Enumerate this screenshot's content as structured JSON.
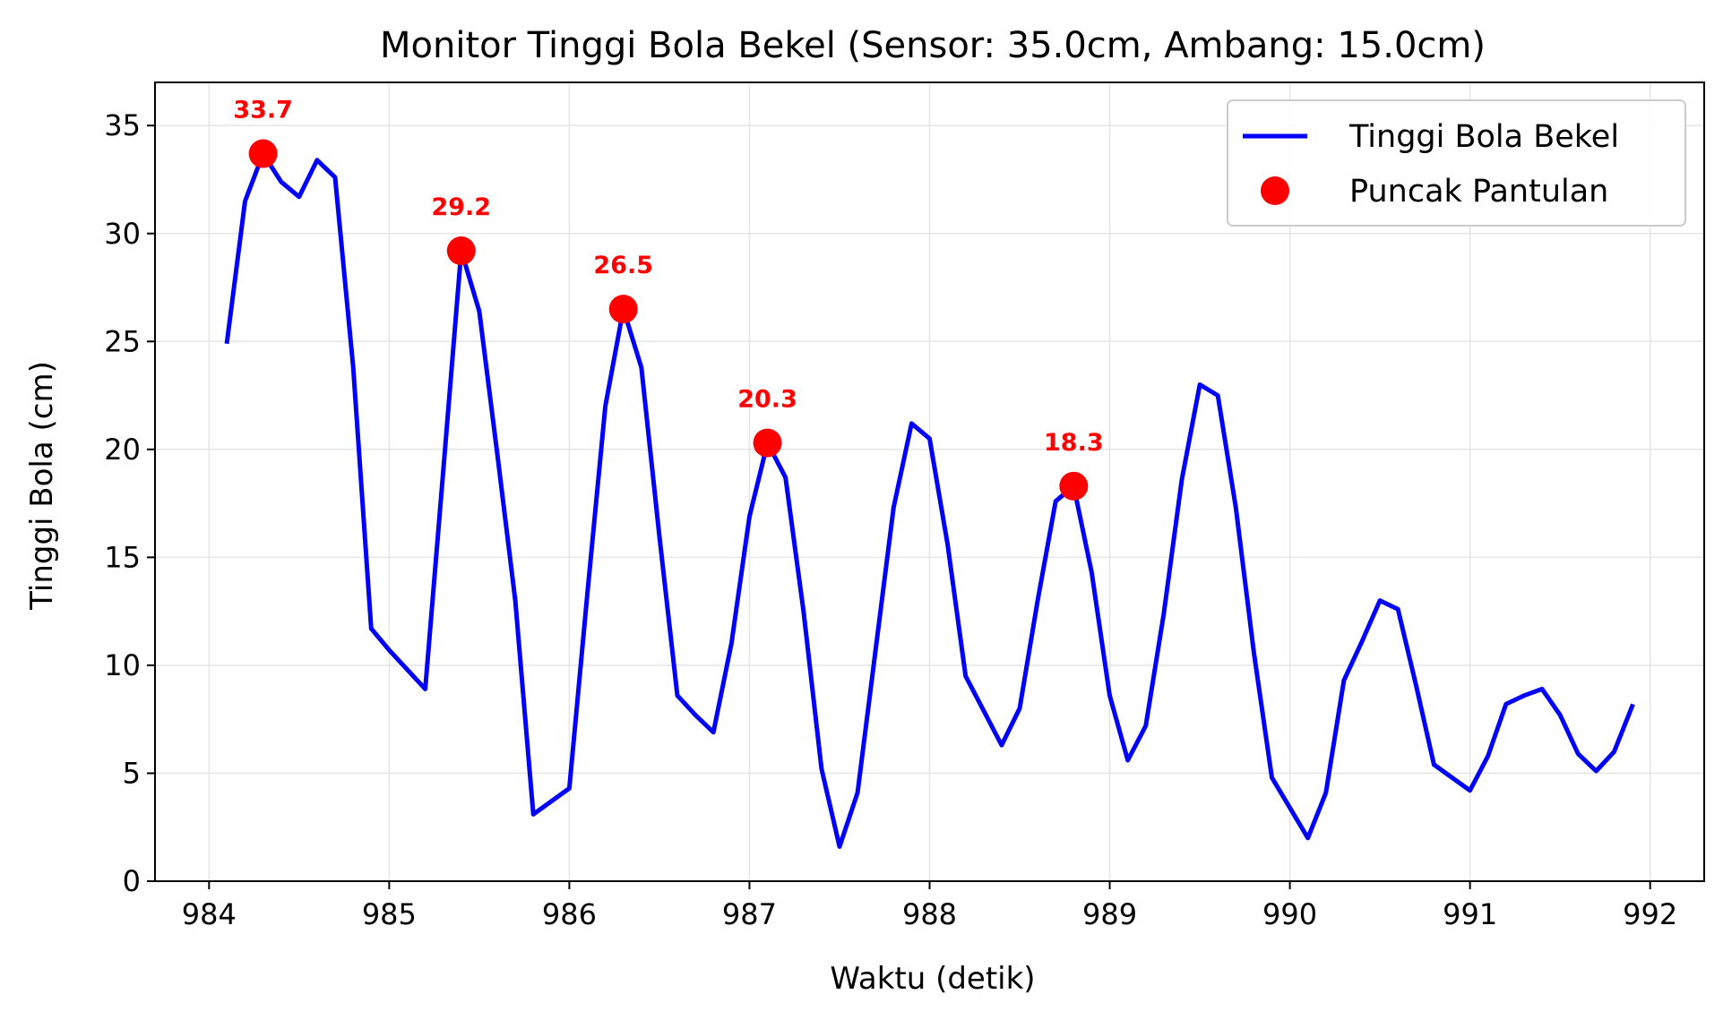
{
  "chart_data": {
    "type": "line",
    "title": "Monitor Tinggi Bola Bekel (Sensor: 35.0cm, Ambang: 15.0cm)",
    "xlabel": "Waktu (detik)",
    "ylabel": "Tinggi Bola (cm)",
    "xlim": [
      983.7,
      992.3
    ],
    "ylim": [
      0,
      37
    ],
    "xticks": [
      984,
      985,
      986,
      987,
      988,
      989,
      990,
      991,
      992
    ],
    "yticks": [
      0,
      5,
      10,
      15,
      20,
      25,
      30,
      35
    ],
    "grid": true,
    "legend_position": "top-right",
    "colors": {
      "line": "#0000ff",
      "peaks": "#ff0000",
      "grid": "#e6e6e6"
    },
    "series": [
      {
        "name": "Tinggi Bola Bekel",
        "kind": "line",
        "x": [
          984.1,
          984.2,
          984.3,
          984.4,
          984.5,
          984.6,
          984.7,
          984.8,
          984.9,
          985.0,
          985.1,
          985.2,
          985.3,
          985.4,
          985.5,
          985.6,
          985.7,
          985.8,
          985.9,
          986.0,
          986.1,
          986.2,
          986.3,
          986.4,
          986.5,
          986.6,
          986.7,
          986.8,
          986.9,
          987.0,
          987.1,
          987.2,
          987.3,
          987.4,
          987.5,
          987.6,
          987.7,
          987.8,
          987.9,
          988.0,
          988.1,
          988.2,
          988.3,
          988.4,
          988.5,
          988.6,
          988.7,
          988.8,
          988.9,
          989.0,
          989.1,
          989.2,
          989.3,
          989.4,
          989.5,
          989.6,
          989.7,
          989.8,
          989.9,
          990.0,
          990.1,
          990.2,
          990.3,
          990.4,
          990.5,
          990.6,
          990.7,
          990.8,
          990.9,
          991.0,
          991.1,
          991.2,
          991.3,
          991.4,
          991.5,
          991.6,
          991.7,
          991.8,
          991.9
        ],
        "y": [
          25.0,
          31.5,
          33.7,
          32.4,
          31.7,
          33.4,
          32.6,
          23.8,
          11.7,
          10.7,
          9.8,
          8.9,
          19.0,
          29.2,
          26.4,
          19.8,
          13.0,
          3.1,
          3.7,
          4.3,
          13.3,
          22.0,
          26.5,
          23.8,
          16.0,
          8.6,
          7.7,
          6.9,
          11.0,
          16.9,
          20.3,
          18.7,
          12.5,
          5.2,
          1.6,
          4.1,
          10.7,
          17.3,
          21.2,
          20.5,
          15.6,
          9.5,
          7.9,
          6.3,
          8.0,
          13.0,
          17.6,
          18.3,
          14.3,
          8.6,
          5.6,
          7.2,
          12.4,
          18.6,
          23.0,
          22.5,
          17.3,
          10.6,
          4.8,
          3.4,
          2.0,
          4.1,
          9.3,
          11.1,
          13.0,
          12.6,
          9.1,
          5.4,
          4.8,
          4.2,
          5.8,
          8.2,
          8.6,
          8.9,
          7.7,
          5.9,
          5.1,
          6.0,
          8.1
        ]
      },
      {
        "name": "Puncak Pantulan",
        "kind": "scatter",
        "x": [
          984.3,
          985.4,
          986.3,
          987.1,
          988.8
        ],
        "y": [
          33.7,
          29.2,
          26.5,
          20.3,
          18.3
        ],
        "labels": [
          "33.7",
          "29.2",
          "26.5",
          "20.3",
          "18.3"
        ]
      }
    ]
  }
}
